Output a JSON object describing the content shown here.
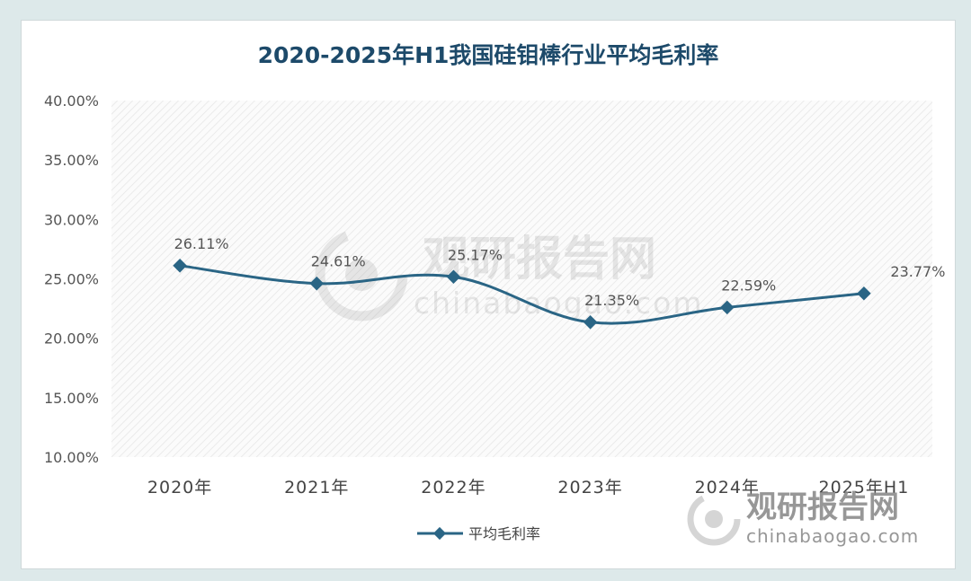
{
  "chart_data": {
    "type": "line",
    "title": "2020-2025年H1我国硅钼棒行业平均毛利率",
    "categories": [
      "2020年",
      "2021年",
      "2022年",
      "2023年",
      "2024年",
      "2025年H1"
    ],
    "series": [
      {
        "name": "平均毛利率",
        "values": [
          26.11,
          24.61,
          25.17,
          21.35,
          22.59,
          23.77
        ],
        "labels": [
          "26.11%",
          "24.61%",
          "25.17%",
          "21.35%",
          "22.59%",
          "23.77%"
        ],
        "color": "#2a6585"
      }
    ],
    "ylim": [
      10,
      40
    ],
    "yticks": [
      "10.00%",
      "15.00%",
      "20.00%",
      "25.00%",
      "30.00%",
      "35.00%",
      "40.00%"
    ],
    "grid": false,
    "legend": "bottom"
  },
  "watermarks": [
    {
      "brand": "观研报告网",
      "site": "chinabaogao.com",
      "icon": "watermark-logo-icon"
    },
    {
      "brand": "观研报告网",
      "site": "chinabaogao.com",
      "icon": "corner-logo-icon"
    }
  ]
}
